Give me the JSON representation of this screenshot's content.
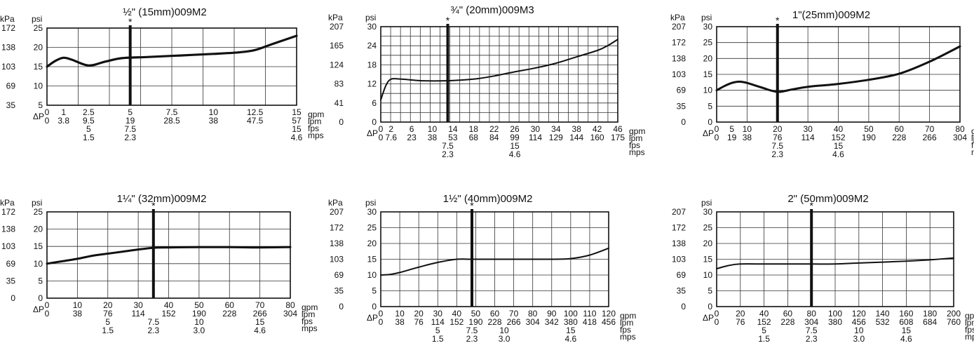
{
  "chart_data": [
    {
      "type": "line",
      "title": "½\" (15mm)009M2",
      "units": {
        "kpa": "kPa",
        "psi": "psi",
        "dp": "ΔP",
        "gpm": "gpm",
        "lpm": "lpm",
        "fps": "fps",
        "mps": "mps"
      },
      "y_psi_ticks": [
        "25",
        "20",
        "15",
        "10",
        "5"
      ],
      "y_kpa_ticks": [
        "172",
        "138",
        "103",
        "69",
        "35"
      ],
      "ylim_psi": [
        5,
        25
      ],
      "x_gpm_ticks": [
        "0",
        "1",
        "2.5",
        "5",
        "7.5",
        "10",
        "12.5",
        "15"
      ],
      "x_lpm_ticks": [
        "0",
        "3.8",
        "9.5",
        "19",
        "28.5",
        "38",
        "47.5",
        "57"
      ],
      "x_fps_ticks": [
        [
          "5",
          2.5
        ],
        [
          "7.5",
          5
        ],
        [
          "15",
          15
        ]
      ],
      "x_mps_ticks": [
        [
          "1.5",
          2.5
        ],
        [
          "2.3",
          5
        ],
        [
          "4.6",
          15
        ]
      ],
      "marker": {
        "x": 5,
        "label": "*"
      },
      "series": [
        {
          "x": [
            0,
            0.5,
            1,
            1.5,
            2.5,
            3.5,
            4.5,
            6,
            8,
            10,
            11.5,
            12.5,
            13.5,
            15
          ],
          "psi": [
            15,
            16.5,
            17.3,
            16.8,
            15.3,
            16.3,
            17.2,
            17.5,
            17.9,
            18.3,
            18.7,
            19.3,
            20.8,
            23
          ]
        }
      ]
    },
    {
      "type": "line",
      "title": "¾\" (20mm)009M3",
      "units": {
        "kpa": "kPa",
        "psi": "psi",
        "dp": "ΔP",
        "gpm": "gpm",
        "lpm": "lpm",
        "fps": "fps",
        "mps": "mps"
      },
      "y_psi_ticks": [
        "30",
        "24",
        "18",
        "12",
        "6",
        "0"
      ],
      "y_kpa_ticks": [
        "207",
        "165",
        "124",
        "83",
        "41",
        "0"
      ],
      "ylim_psi": [
        0,
        30
      ],
      "x_gpm_ticks": [
        "0",
        "2",
        "6",
        "10",
        "14",
        "18",
        "22",
        "26",
        "30",
        "34",
        "38",
        "42",
        "46"
      ],
      "x_lpm_ticks": [
        "0",
        "7.6",
        "23",
        "38",
        "53",
        "68",
        "84",
        "99",
        "114",
        "129",
        "144",
        "160",
        "175"
      ],
      "x_fps_ticks": [
        [
          "7.5",
          13
        ],
        [
          "15",
          26
        ]
      ],
      "x_mps_ticks": [
        [
          "2.3",
          13
        ],
        [
          "4.6",
          26
        ]
      ],
      "marker": {
        "x": 13,
        "label": "*"
      },
      "series": [
        {
          "x": [
            0,
            1,
            2,
            4,
            8,
            13,
            18,
            22,
            26,
            30,
            34,
            38,
            42,
            44,
            46
          ],
          "psi": [
            7,
            11.5,
            13.5,
            13.5,
            13,
            13,
            13.5,
            14.5,
            15.8,
            17,
            18.5,
            20.5,
            22.5,
            24,
            26
          ]
        }
      ]
    },
    {
      "type": "line",
      "title": "1\"(25mm)009M2",
      "units": {
        "kpa": "kPa",
        "psi": "psi",
        "dp": "ΔP",
        "gpm": "gpm",
        "lpm": "lpm",
        "fps": "fps",
        "mps": "mps"
      },
      "y_psi_ticks": [
        "30",
        "25",
        "20",
        "15",
        "10",
        "5",
        "0"
      ],
      "y_kpa_ticks": [
        "207",
        "172",
        "138",
        "103",
        "69",
        "35",
        "0"
      ],
      "ylim_psi": [
        0,
        30
      ],
      "x_gpm_ticks": [
        "0",
        "5",
        "10",
        "20",
        "30",
        "40",
        "50",
        "60",
        "70",
        "80"
      ],
      "x_lpm_ticks": [
        "0",
        "19",
        "38",
        "76",
        "114",
        "152",
        "190",
        "228",
        "266",
        "304"
      ],
      "x_fps_ticks": [
        [
          "7.5",
          20
        ],
        [
          "15",
          40
        ]
      ],
      "x_mps_ticks": [
        [
          "2.3",
          20
        ],
        [
          "4.6",
          40
        ]
      ],
      "marker": {
        "x": 20,
        "label": "*"
      },
      "series": [
        {
          "x": [
            0,
            2.5,
            5,
            7.5,
            10,
            15,
            20,
            25,
            30,
            40,
            50,
            60,
            70,
            80
          ],
          "psi": [
            10,
            11.3,
            12.3,
            12.7,
            12.3,
            10.8,
            9.5,
            10.3,
            11.1,
            12,
            13.3,
            15.2,
            19,
            23.8
          ]
        }
      ]
    },
    {
      "type": "line",
      "title": "1¼\" (32mm)009M2",
      "units": {
        "kpa": "kPa",
        "psi": "psi",
        "dp": "ΔP",
        "gpm": "gpm",
        "lpm": "lpm",
        "fps": "fps",
        "mps": "mps"
      },
      "y_psi_ticks": [
        "25",
        "20",
        "15",
        "10",
        "5",
        "0"
      ],
      "y_kpa_ticks": [
        "172",
        "138",
        "103",
        "69",
        "35",
        "0"
      ],
      "ylim_psi": [
        0,
        25
      ],
      "x_gpm_ticks": [
        "0",
        "10",
        "20",
        "30",
        "40",
        "50",
        "60",
        "70",
        "80"
      ],
      "x_lpm_ticks": [
        "0",
        "38",
        "76",
        "114",
        "152",
        "190",
        "228",
        "266",
        "304"
      ],
      "x_fps_ticks": [
        [
          "5",
          20
        ],
        [
          "7.5",
          35
        ],
        [
          "10",
          50
        ],
        [
          "15",
          70
        ]
      ],
      "x_mps_ticks": [
        [
          "1.5",
          20
        ],
        [
          "2.3",
          35
        ],
        [
          "3.0",
          50
        ],
        [
          "4.6",
          70
        ]
      ],
      "marker": {
        "x": 35,
        "label": "*"
      },
      "series": [
        {
          "x": [
            0,
            5,
            10,
            15,
            20,
            25,
            30,
            35,
            40,
            50,
            60,
            70,
            80
          ],
          "psi": [
            10,
            10.7,
            11.4,
            12.3,
            12.9,
            13.5,
            14.1,
            14.6,
            14.7,
            14.8,
            14.8,
            14.7,
            14.8
          ]
        }
      ]
    },
    {
      "type": "line",
      "title": "1½\" (40mm)009M2",
      "units": {
        "kpa": "kPa",
        "psi": "psi",
        "dp": "ΔP",
        "gpm": "gpm",
        "lpm": "lpm",
        "fps": "fps",
        "mps": "mps"
      },
      "y_psi_ticks": [
        "30",
        "25",
        "20",
        "15",
        "10",
        "5",
        "0"
      ],
      "y_kpa_ticks": [
        "207",
        "172",
        "138",
        "103",
        "69",
        "35",
        "0"
      ],
      "ylim_psi": [
        0,
        30
      ],
      "x_gpm_ticks": [
        "0",
        "10",
        "20",
        "30",
        "40",
        "50",
        "60",
        "70",
        "80",
        "90",
        "100",
        "110",
        "120"
      ],
      "x_lpm_ticks": [
        "0",
        "38",
        "76",
        "114",
        "152",
        "190",
        "228",
        "266",
        "304",
        "342",
        "380",
        "418",
        "456"
      ],
      "x_fps_ticks": [
        [
          "5",
          30
        ],
        [
          "7.5",
          48
        ],
        [
          "10",
          65
        ],
        [
          "15",
          100
        ]
      ],
      "x_mps_ticks": [
        [
          "1.5",
          30
        ],
        [
          "2.3",
          48
        ],
        [
          "3.0",
          65
        ],
        [
          "4.6",
          100
        ]
      ],
      "marker": {
        "x": 48,
        "label": "*"
      },
      "series": [
        {
          "x": [
            0,
            5,
            10,
            20,
            30,
            40,
            48,
            60,
            70,
            80,
            90,
            100,
            110,
            120
          ],
          "psi": [
            10,
            10.2,
            10.8,
            12.5,
            14,
            15,
            15,
            15,
            15,
            15,
            15,
            15.2,
            16.3,
            18.5
          ]
        }
      ]
    },
    {
      "type": "line",
      "title": "2\" (50mm)009M2",
      "units": {
        "kpa": "",
        "psi": "psi",
        "dp": "ΔP",
        "gpm": "gpm",
        "lpm": "lpm",
        "fps": "fps",
        "mps": "mps"
      },
      "y_psi_ticks": [
        "30",
        "25",
        "20",
        "15",
        "10",
        "5",
        "0"
      ],
      "y_kpa_ticks": [
        "207",
        "172",
        "138",
        "103",
        "69",
        "35",
        "0"
      ],
      "ylim_psi": [
        0,
        30
      ],
      "x_gpm_ticks": [
        "0",
        "20",
        "40",
        "60",
        "80",
        "100",
        "120",
        "140",
        "160",
        "180",
        "200"
      ],
      "x_lpm_ticks": [
        "0",
        "76",
        "152",
        "228",
        "304",
        "380",
        "456",
        "532",
        "608",
        "684",
        "760"
      ],
      "x_fps_ticks": [
        [
          "5",
          40
        ],
        [
          "7.5",
          80
        ],
        [
          "10",
          120
        ],
        [
          "15",
          160
        ]
      ],
      "x_mps_ticks": [
        [
          "1.5",
          40
        ],
        [
          "2.3",
          80
        ],
        [
          "3.0",
          120
        ],
        [
          "4.6",
          160
        ]
      ],
      "marker": {
        "x": 80,
        "label": "*"
      },
      "series": [
        {
          "x": [
            0,
            10,
            20,
            40,
            60,
            80,
            100,
            120,
            140,
            160,
            180,
            200
          ],
          "psi": [
            12,
            13,
            13.5,
            13.5,
            13.5,
            13.5,
            13.5,
            13.8,
            14.1,
            14.4,
            14.8,
            15.4
          ]
        }
      ]
    }
  ]
}
